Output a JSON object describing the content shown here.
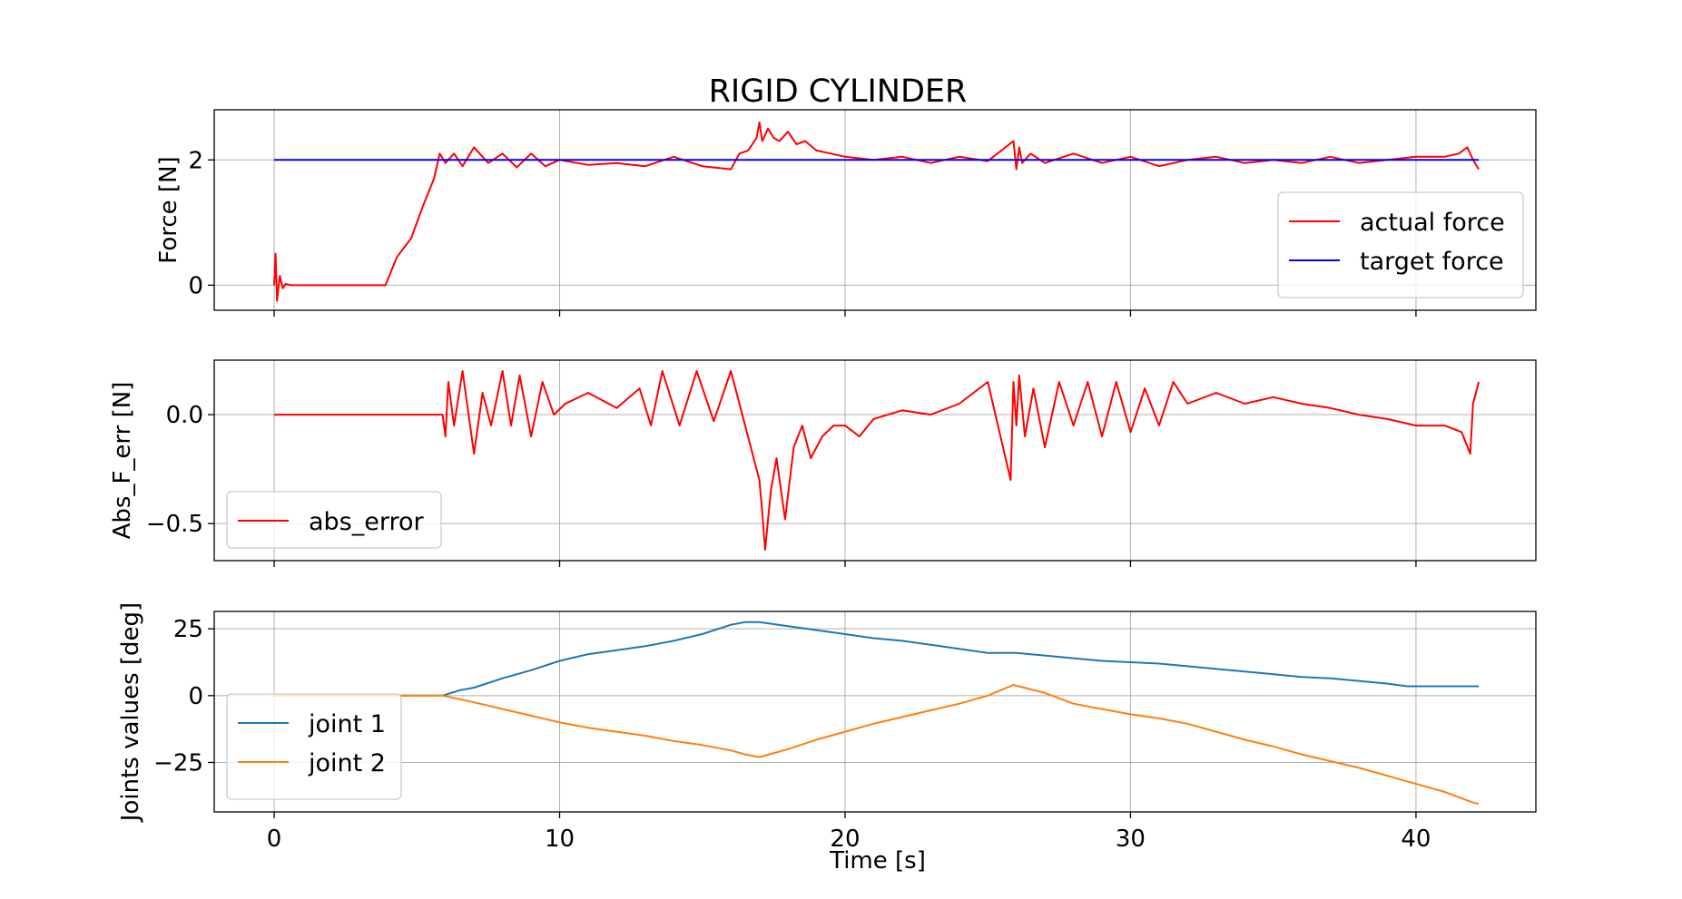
{
  "figure": {
    "title": "RIGID CYLINDER",
    "shared_xlabel": "Time [s]"
  },
  "chart_data": [
    {
      "type": "line",
      "ylabel": "Force [N]",
      "xlim": [
        -2.1,
        44.2
      ],
      "ylim": [
        -0.4,
        2.8
      ],
      "xticks": [
        0,
        10,
        20,
        30,
        40
      ],
      "xtick_labels_visible": false,
      "yticks": [
        0,
        2
      ],
      "ytick_labels": [
        "0",
        "2"
      ],
      "grid": true,
      "legend": {
        "placement": "lower right",
        "entries": [
          "actual force",
          "target force"
        ]
      },
      "series": [
        {
          "name": "actual force",
          "color": "#ff0000",
          "x": [
            0,
            0.05,
            0.1,
            0.2,
            0.3,
            0.4,
            0.6,
            1,
            2,
            3,
            3.9,
            4.3,
            4.8,
            5.2,
            5.6,
            5.8,
            6,
            6.3,
            6.6,
            7,
            7.5,
            8,
            8.5,
            9,
            9.5,
            10,
            11,
            12,
            13,
            14,
            15,
            16,
            16.3,
            16.6,
            16.9,
            17.0,
            17.1,
            17.3,
            17.5,
            17.7,
            18,
            18.3,
            18.6,
            19,
            19.5,
            20,
            21,
            22,
            23,
            24,
            25,
            25.9,
            26.0,
            26.1,
            26.2,
            26.5,
            27,
            28,
            29,
            30,
            31,
            32,
            33,
            34,
            35,
            36,
            37,
            38,
            39,
            40,
            41,
            41.5,
            41.8,
            42,
            42.2
          ],
          "y": [
            0,
            0.5,
            -0.25,
            0.15,
            -0.05,
            0.02,
            0,
            0,
            0,
            0,
            0,
            0.45,
            0.75,
            1.25,
            1.7,
            2.1,
            1.95,
            2.1,
            1.9,
            2.2,
            1.95,
            2.1,
            1.88,
            2.1,
            1.9,
            2.0,
            1.92,
            1.95,
            1.9,
            2.05,
            1.9,
            1.85,
            2.1,
            2.15,
            2.35,
            2.6,
            2.3,
            2.5,
            2.35,
            2.3,
            2.45,
            2.25,
            2.3,
            2.15,
            2.1,
            2.05,
            2.0,
            2.05,
            1.95,
            2.05,
            1.98,
            2.3,
            1.85,
            2.2,
            1.95,
            2.1,
            1.95,
            2.1,
            1.95,
            2.05,
            1.9,
            2.0,
            2.05,
            1.95,
            2.0,
            1.95,
            2.05,
            1.95,
            2.0,
            2.05,
            2.05,
            2.1,
            2.2,
            2.0,
            1.85
          ]
        },
        {
          "name": "target force",
          "color": "#0000ff",
          "x": [
            0,
            42.2
          ],
          "y": [
            2,
            2
          ]
        }
      ]
    },
    {
      "type": "line",
      "ylabel": "Abs_F_err [N]",
      "xlim": [
        -2.1,
        44.2
      ],
      "ylim": [
        -0.67,
        0.25
      ],
      "xticks": [
        0,
        10,
        20,
        30,
        40
      ],
      "xtick_labels_visible": false,
      "yticks": [
        0.0,
        -0.5
      ],
      "ytick_labels": [
        "0.0",
        "−0.5"
      ],
      "grid": true,
      "legend": {
        "placement": "lower left",
        "entries": [
          "abs_error"
        ]
      },
      "series": [
        {
          "name": "abs_error",
          "color": "#ff0000",
          "x": [
            0,
            5.9,
            6.0,
            6.1,
            6.3,
            6.6,
            7.0,
            7.3,
            7.6,
            8.0,
            8.3,
            8.6,
            9.0,
            9.4,
            9.8,
            10.2,
            11,
            12,
            12.8,
            13.2,
            13.6,
            14.2,
            14.8,
            15.4,
            16.0,
            16.5,
            16.8,
            17.0,
            17.1,
            17.2,
            17.4,
            17.6,
            17.9,
            18.2,
            18.5,
            18.8,
            19.2,
            19.6,
            20,
            20.5,
            21,
            22,
            23,
            24,
            25,
            25.8,
            25.9,
            26.0,
            26.1,
            26.3,
            26.6,
            27,
            27.5,
            28,
            28.5,
            29,
            29.5,
            30,
            30.5,
            31,
            31.5,
            32,
            33,
            34,
            35,
            36,
            37,
            38,
            39,
            40,
            41,
            41.6,
            41.9,
            42.0,
            42.2
          ],
          "y": [
            0,
            0,
            -0.1,
            0.15,
            -0.05,
            0.2,
            -0.18,
            0.1,
            -0.05,
            0.2,
            -0.05,
            0.18,
            -0.1,
            0.15,
            0.0,
            0.05,
            0.1,
            0.03,
            0.12,
            -0.05,
            0.2,
            -0.05,
            0.2,
            -0.03,
            0.2,
            -0.05,
            -0.2,
            -0.3,
            -0.45,
            -0.62,
            -0.35,
            -0.2,
            -0.48,
            -0.15,
            -0.05,
            -0.2,
            -0.1,
            -0.05,
            -0.05,
            -0.1,
            -0.02,
            0.02,
            0.0,
            0.05,
            0.15,
            -0.3,
            0.15,
            -0.05,
            0.18,
            -0.1,
            0.12,
            -0.15,
            0.15,
            -0.05,
            0.15,
            -0.1,
            0.15,
            -0.08,
            0.12,
            -0.05,
            0.15,
            0.05,
            0.1,
            0.05,
            0.08,
            0.05,
            0.03,
            0.0,
            -0.02,
            -0.05,
            -0.05,
            -0.08,
            -0.18,
            0.05,
            0.15
          ]
        }
      ]
    },
    {
      "type": "line",
      "ylabel": "Joints values [deg]",
      "xlim": [
        -2.1,
        44.2
      ],
      "ylim": [
        -43.5,
        31.5
      ],
      "xticks": [
        0,
        10,
        20,
        30,
        40
      ],
      "xtick_labels": [
        "0",
        "10",
        "20",
        "30",
        "40"
      ],
      "xlabel": "Time [s]",
      "yticks": [
        25,
        0,
        -25
      ],
      "ytick_labels": [
        "25",
        "0",
        "−25"
      ],
      "grid": true,
      "legend": {
        "placement": "lower left",
        "entries": [
          "joint 1",
          "joint 2"
        ]
      },
      "series": [
        {
          "name": "joint 1",
          "color": "#1f77b4",
          "x": [
            0,
            5.9,
            6.5,
            7,
            8,
            9,
            10,
            11,
            12,
            13,
            14,
            15,
            16,
            16.5,
            17,
            18,
            19,
            20,
            21,
            22,
            23,
            24,
            25,
            26,
            27,
            28,
            29,
            30,
            31,
            32,
            33,
            34,
            35,
            36,
            37,
            38,
            39,
            39.7,
            40,
            41,
            42,
            42.2
          ],
          "y": [
            0,
            0,
            2,
            3,
            6.5,
            9.5,
            13,
            15.5,
            17,
            18.5,
            20.5,
            23,
            26.5,
            27.5,
            27.5,
            26,
            24.5,
            23,
            21.5,
            20.5,
            19,
            17.5,
            16,
            16,
            15,
            14,
            13,
            12.5,
            12,
            11,
            10,
            9,
            8,
            7,
            6.5,
            5.5,
            4.5,
            3.5,
            3.5,
            3.5,
            3.5,
            3.5
          ]
        },
        {
          "name": "joint 2",
          "color": "#ff7f0e",
          "x": [
            0,
            5.9,
            7,
            8,
            9,
            10,
            11,
            12,
            13,
            14,
            15,
            16,
            16.5,
            17,
            18,
            19,
            20,
            21,
            22,
            23,
            24,
            25,
            25.9,
            27,
            28,
            29,
            30,
            31,
            32,
            33,
            34,
            35,
            36,
            37,
            38,
            39,
            40,
            41,
            42,
            42.2
          ],
          "y": [
            0,
            0,
            -2.5,
            -5,
            -7.5,
            -10,
            -12,
            -13.5,
            -15,
            -17,
            -18.5,
            -20.5,
            -22,
            -23,
            -20,
            -16.5,
            -13.5,
            -10.5,
            -8,
            -5.5,
            -3,
            0,
            4,
            1,
            -3,
            -5,
            -7,
            -8.5,
            -10.5,
            -13.5,
            -16.5,
            -19,
            -22,
            -24.5,
            -27,
            -30,
            -33,
            -36,
            -40,
            -40.5
          ]
        }
      ]
    }
  ]
}
